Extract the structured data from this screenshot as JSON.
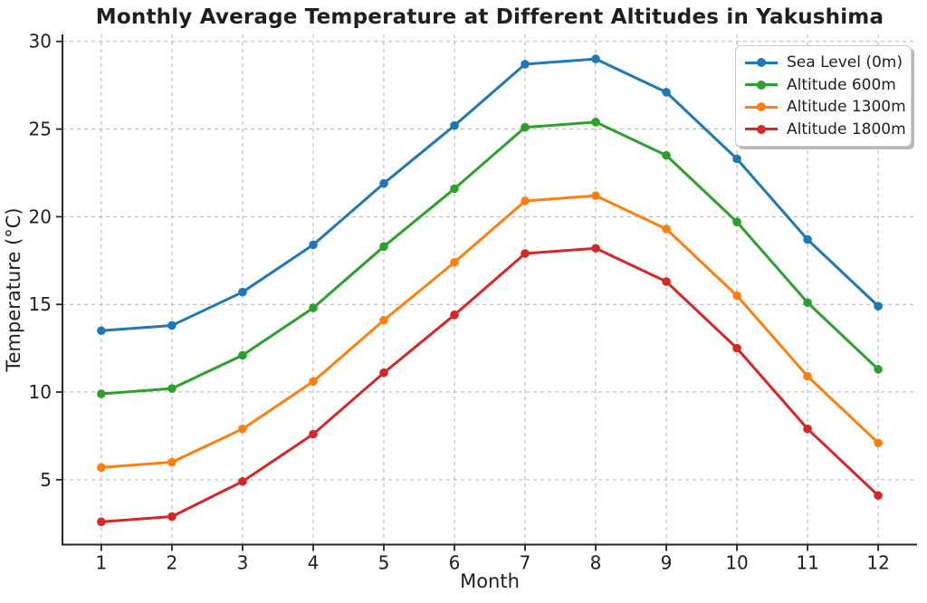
{
  "chart_data": {
    "type": "line",
    "title": "Monthly Average Temperature at Different Altitudes in Yakushima",
    "xlabel": "Month",
    "ylabel": "Temperature (°C)",
    "x": [
      1,
      2,
      3,
      4,
      5,
      6,
      7,
      8,
      9,
      10,
      11,
      12
    ],
    "xticks": [
      1,
      2,
      3,
      4,
      5,
      6,
      7,
      8,
      9,
      10,
      11,
      12
    ],
    "yticks": [
      5,
      10,
      15,
      20,
      25,
      30
    ],
    "xlim": [
      0.45,
      12.55
    ],
    "ylim": [
      1.3,
      30.4
    ],
    "grid": true,
    "grid_style": "dashed",
    "legend_position": "upper right",
    "series": [
      {
        "name": "Sea Level (0m)",
        "color": "#1f77b4",
        "values": [
          13.5,
          13.8,
          15.7,
          18.4,
          21.9,
          25.2,
          28.7,
          29.0,
          27.1,
          23.3,
          18.7,
          14.9
        ]
      },
      {
        "name": "Altitude 600m",
        "color": "#2ca02c",
        "values": [
          9.9,
          10.2,
          12.1,
          14.8,
          18.3,
          21.6,
          25.1,
          25.4,
          23.5,
          19.7,
          15.1,
          11.3
        ]
      },
      {
        "name": "Altitude 1300m",
        "color": "#ff7f0e",
        "values": [
          5.7,
          6.0,
          7.9,
          10.6,
          14.1,
          17.4,
          20.9,
          21.2,
          19.3,
          15.5,
          10.9,
          7.1
        ]
      },
      {
        "name": "Altitude 1800m",
        "color": "#d62728",
        "values": [
          2.6,
          2.9,
          4.9,
          7.6,
          11.1,
          14.4,
          17.9,
          18.2,
          16.3,
          12.5,
          7.9,
          4.1
        ]
      }
    ],
    "colors": {
      "grid": "#b3b3b3",
      "spine": "#262626",
      "tick_text": "#1f1f1f",
      "legend_border": "#cccccc",
      "legend_shadow": "#b8b8b8"
    }
  }
}
